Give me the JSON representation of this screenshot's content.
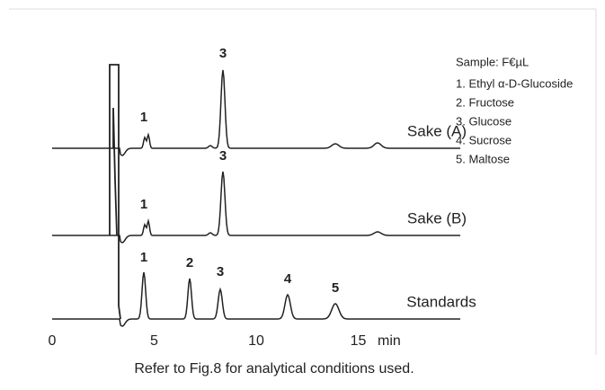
{
  "chart_data": {
    "type": "chromatogram",
    "xlim": [
      0,
      20
    ],
    "xticks": [
      0,
      5,
      10,
      15
    ],
    "xlabel": "min",
    "traces": [
      {
        "name": "Sake (A)",
        "peak_labels": [
          "1",
          "3"
        ]
      },
      {
        "name": "Sake (B)",
        "peak_labels": [
          "1",
          "3"
        ]
      },
      {
        "name": "Standards",
        "peak_labels": [
          "1",
          "2",
          "3",
          "4",
          "5"
        ]
      }
    ],
    "legend_title": "Sample: F€µL",
    "legend": [
      "1. Ethyl α-D-Glucoside",
      "2. Fructose",
      "3. Glucose",
      "4. Sucrose",
      "5. Maltose"
    ],
    "caption": "Refer to Fig.8 for analytical conditions used."
  }
}
